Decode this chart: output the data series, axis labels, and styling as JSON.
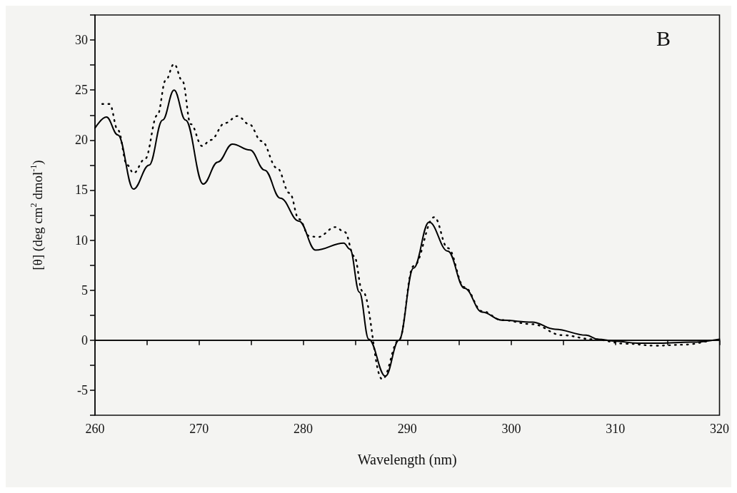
{
  "chart_data": {
    "type": "line",
    "xlabel": "Wavelength (nm)",
    "ylabel": "[θ] (deg cm$^{2}$ dmol$^{-1}$)",
    "annotations": [
      "B"
    ],
    "xlim": [
      260,
      320
    ],
    "xticks": [
      260,
      {
        "value": 265,
        "label": null
      },
      270,
      {
        "value": 275,
        "label": null
      },
      280,
      {
        "value": 285,
        "label": null
      },
      290,
      {
        "value": 295,
        "label": null
      },
      300,
      {
        "value": 305,
        "label": null
      },
      310,
      {
        "value": 315,
        "label": null
      },
      320
    ],
    "ylim": [
      -7.5,
      32.5
    ],
    "yticks": [
      {
        "value": -7.5,
        "label": null
      },
      -5,
      {
        "value": -2.5,
        "label": null
      },
      0,
      {
        "value": 2.5,
        "label": null
      },
      5,
      {
        "value": 7.5,
        "label": null
      },
      10,
      {
        "value": 12.5,
        "label": null
      },
      15,
      {
        "value": 17.5,
        "label": null
      },
      20,
      {
        "value": 22.5,
        "label": null
      },
      25,
      {
        "value": 27.5,
        "label": null
      },
      30,
      {
        "value": 32.5,
        "label": null
      }
    ],
    "grid": false,
    "marker": "none",
    "ref_lines": [
      {
        "axis": "y",
        "value": 0,
        "color": "#000000",
        "line_style": "solid"
      }
    ],
    "series": [
      {
        "color": "#000000",
        "line_style": "solid",
        "x": [
          260,
          261.1,
          262.2,
          263.7,
          265.2,
          266.5,
          267.6,
          268.7,
          270.4,
          271.8,
          273.2,
          274.9,
          276.3,
          277.8,
          279.6,
          281.2,
          283.9,
          284.5,
          285.4,
          286.3,
          287.9,
          289.2,
          290.6,
          292.1,
          293.9,
          295.5,
          297.2,
          299.1,
          302,
          304.2,
          307.2,
          308.3,
          310,
          312.1,
          314.3,
          317.2,
          320
        ],
        "values": [
          21.2,
          22.3,
          20.5,
          15.1,
          17.5,
          22,
          25,
          22,
          15.6,
          17.8,
          19.6,
          19,
          17,
          14.2,
          11.9,
          9,
          9.7,
          9.1,
          4.8,
          0.1,
          -3.6,
          0,
          7.2,
          11.8,
          8.9,
          5.2,
          2.8,
          2,
          1.8,
          1.1,
          0.5,
          0.1,
          -0.1,
          -0.3,
          -0.3,
          -0.2,
          0.1
        ]
      },
      {
        "color": "#000000",
        "line_style": "dotted",
        "x": [
          260.7,
          261.4,
          262.2,
          263.1,
          263.7,
          264.8,
          266,
          266.8,
          267.6,
          268.4,
          269.2,
          270.3,
          271.1,
          272.5,
          273.7,
          274.8,
          276,
          277.5,
          278.7,
          279.6,
          280.6,
          281.4,
          283.1,
          284,
          284.9,
          285.7,
          287.6,
          289.2,
          290.6,
          292.6,
          293.9,
          295.5,
          297.2,
          299.1,
          302,
          304.9,
          307.8,
          311,
          313.9,
          316.6,
          319
        ],
        "values": [
          23.6,
          23.6,
          21,
          17.5,
          16.7,
          18.1,
          22.5,
          26,
          27.6,
          25.9,
          21.6,
          19.4,
          20,
          21.7,
          22.4,
          21.6,
          19.9,
          17.2,
          14.7,
          12.1,
          10.4,
          10.3,
          11.3,
          10.8,
          8.4,
          4.9,
          -3.9,
          0,
          7.4,
          12.3,
          9.2,
          5.3,
          2.9,
          2,
          1.6,
          0.5,
          0.1,
          -0.35,
          -0.55,
          -0.45,
          -0.05
        ]
      }
    ]
  }
}
